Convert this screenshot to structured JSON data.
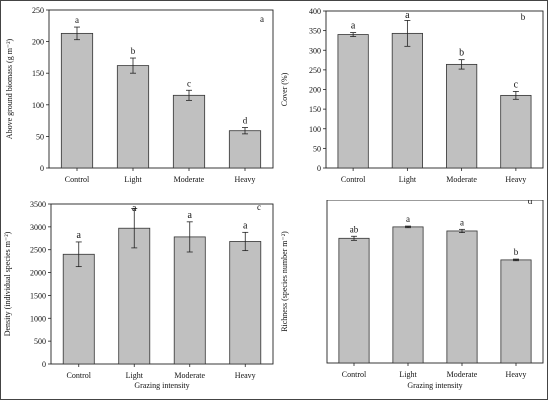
{
  "chart_data": [
    {
      "type": "bar",
      "panel_label": "a",
      "categories": [
        "Control",
        "Light",
        "Moderate",
        "Heavy"
      ],
      "values": [
        213,
        162,
        115,
        59
      ],
      "errors": [
        10,
        12,
        8,
        5
      ],
      "letters": [
        "a",
        "b",
        "c",
        "d"
      ],
      "ylim": [
        0,
        250
      ],
      "yticks": [
        0,
        50,
        100,
        150,
        200,
        250
      ],
      "ylabel": "Above ground biomass (g m⁻²)",
      "xlabel": ""
    },
    {
      "type": "bar",
      "panel_label": "b",
      "categories": [
        "Control",
        "Light",
        "Moderate",
        "Heavy"
      ],
      "values": [
        340,
        343,
        264,
        185
      ],
      "errors": [
        5,
        33,
        12,
        10
      ],
      "letters": [
        "a",
        "a",
        "b",
        "c"
      ],
      "ylim": [
        0,
        400
      ],
      "yticks": [
        0,
        50,
        100,
        150,
        200,
        250,
        300,
        350,
        400
      ],
      "ylabel": "Cover (%)",
      "xlabel": ""
    },
    {
      "type": "bar",
      "panel_label": "c",
      "categories": [
        "Control",
        "Light",
        "Moderate",
        "Heavy"
      ],
      "values": [
        2400,
        2970,
        2780,
        2680
      ],
      "errors": [
        270,
        430,
        330,
        200
      ],
      "letters": [
        "a",
        "a",
        "a",
        "a"
      ],
      "ylim": [
        0,
        3500
      ],
      "yticks": [
        0,
        500,
        1000,
        1500,
        2000,
        2500,
        3000,
        3500
      ],
      "ylabel": "Density (individual species m⁻²)",
      "xlabel": "Grazing intensity"
    },
    {
      "type": "bar",
      "panel_label": "d",
      "categories": [
        "Control",
        "Light",
        "Moderate",
        "Heavy"
      ],
      "values": [
        30.6,
        33.4,
        32.4,
        25.3
      ],
      "errors": [
        0.5,
        0.2,
        0.4,
        0.2
      ],
      "letters": [
        "ab",
        "a",
        "a",
        "b"
      ],
      "ylim": [
        0,
        40
      ],
      "yticks": [],
      "ylabel": "Richness (species number m⁻²)",
      "xlabel": "Grazing intensity"
    }
  ]
}
